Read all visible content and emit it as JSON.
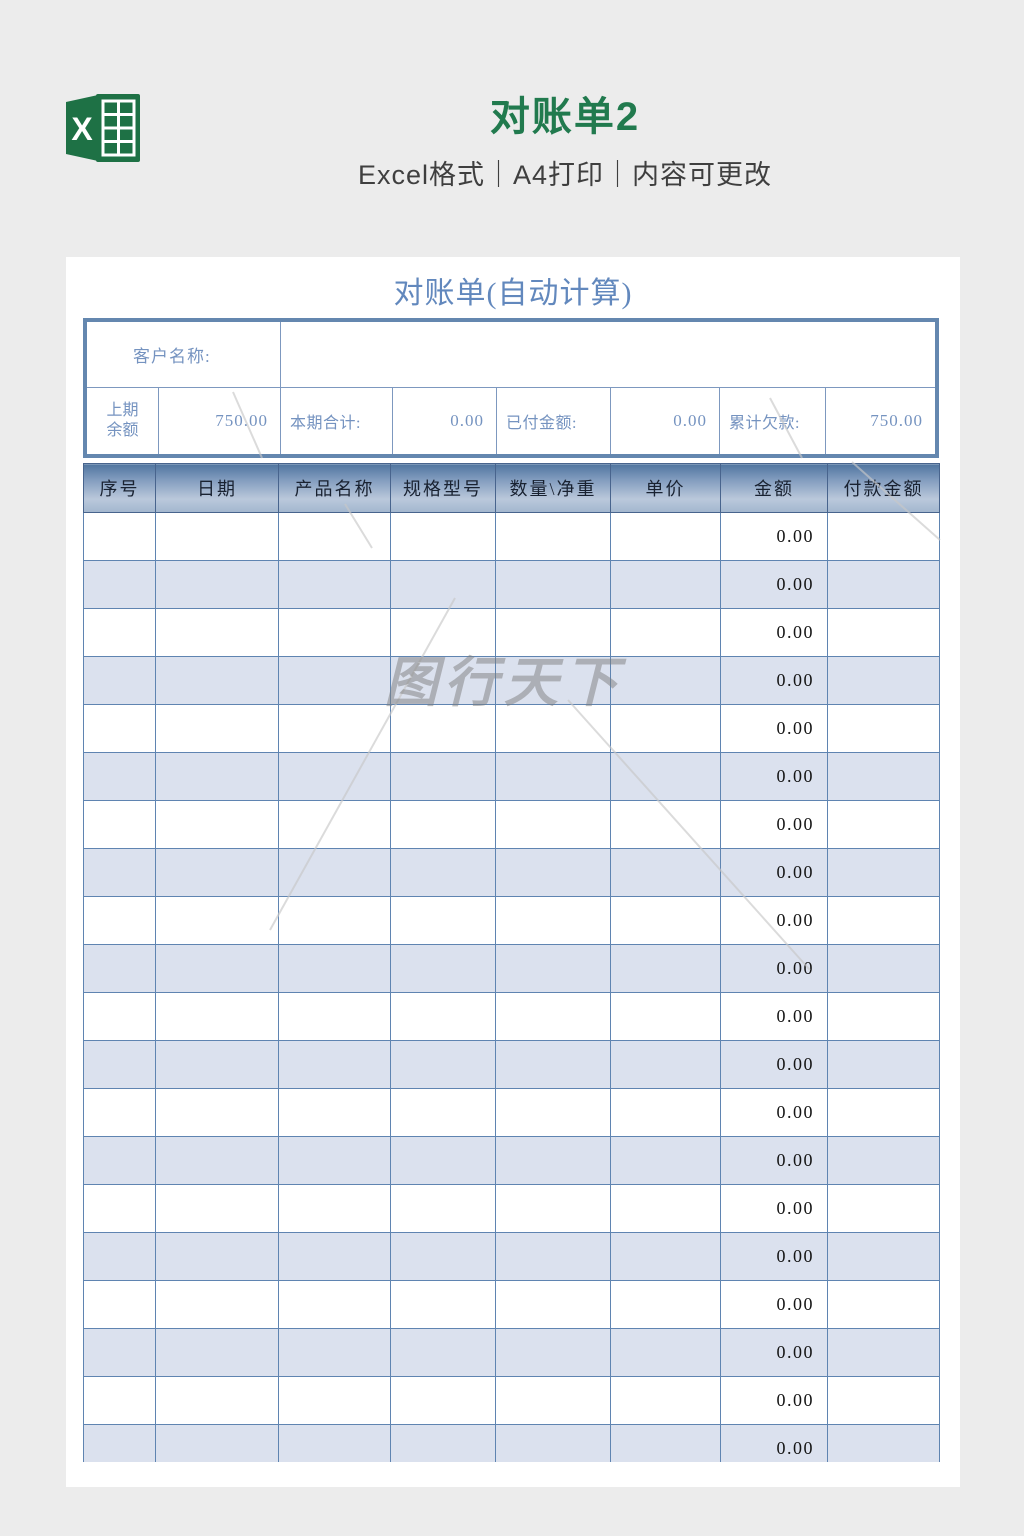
{
  "header": {
    "title": "对账单2",
    "subtitle": "Excel格式｜A4打印｜内容可更改",
    "icon": "excel-logo-icon"
  },
  "document": {
    "title": "对账单(自动计算)",
    "summary": {
      "customer_label": "客户名称:",
      "customer_value": "",
      "fields": [
        {
          "label": "上期余额",
          "value": "750.00"
        },
        {
          "label": "本期合计:",
          "value": "0.00"
        },
        {
          "label": "已付金额:",
          "value": "0.00"
        },
        {
          "label": "累计欠款:",
          "value": "750.00"
        }
      ]
    },
    "table": {
      "columns": [
        "序号",
        "日期",
        "产品名称",
        "规格型号",
        "数量\\净重",
        "单价",
        "金额",
        "付款金额"
      ],
      "amount_column_index": 6,
      "row_amounts": [
        "0.00",
        "0.00",
        "0.00",
        "0.00",
        "0.00",
        "0.00",
        "0.00",
        "0.00",
        "0.00",
        "0.00",
        "0.00",
        "0.00",
        "0.00",
        "0.00",
        "0.00",
        "0.00",
        "0.00",
        "0.00",
        "0.00",
        "0.00"
      ]
    },
    "watermark": {
      "text": "图行天下"
    }
  },
  "colors": {
    "page_background": "#ececec",
    "excel_green": "#1e7145",
    "title_green": "#217a4e",
    "blue_text": "#7593c0",
    "doc_title_blue": "#6288bd",
    "border_blue": "#6487af",
    "grid_blue": "#5f84b1",
    "shaded_row": "#dbe1ee"
  }
}
